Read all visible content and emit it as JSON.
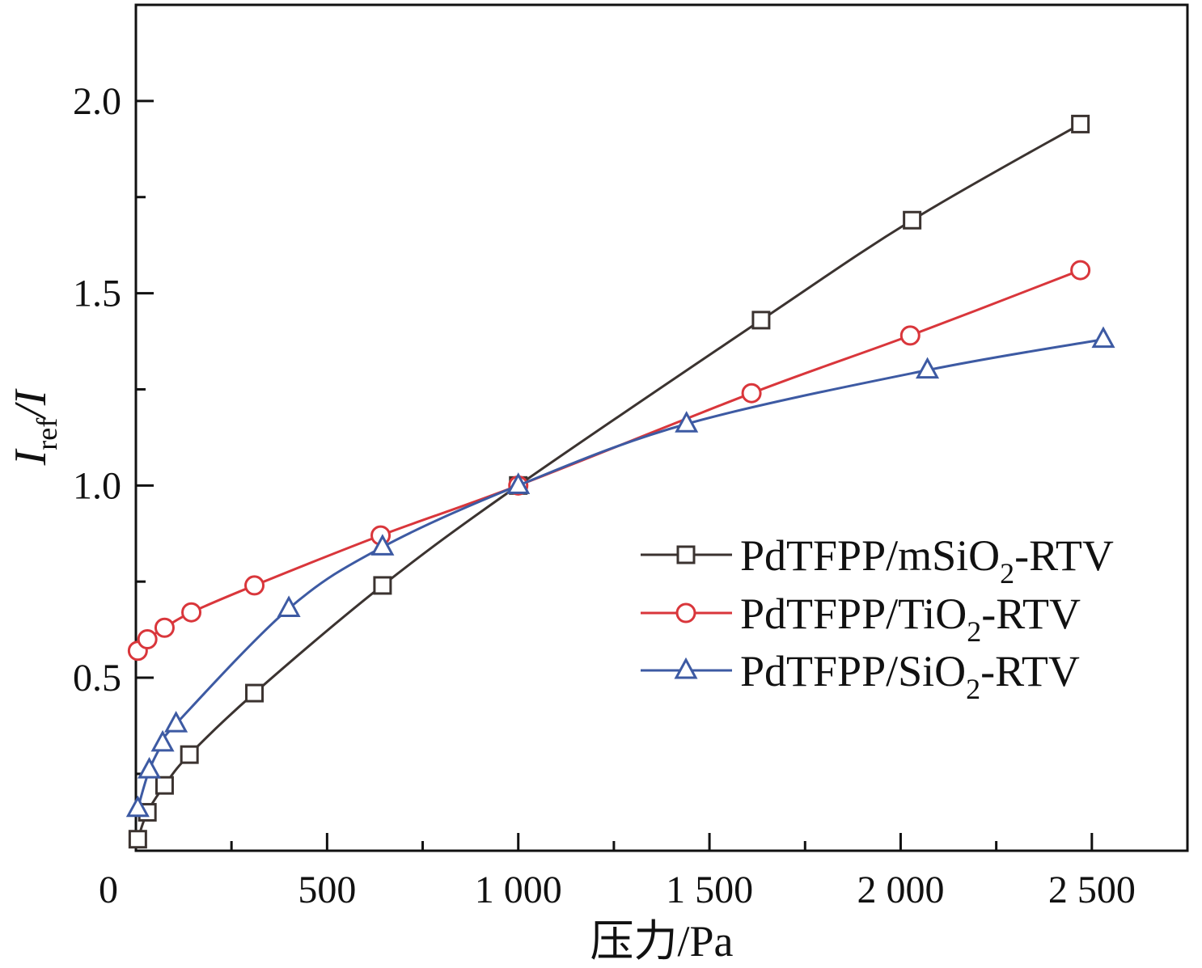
{
  "chart_data": {
    "type": "line",
    "title": "",
    "xlabel": "压力/Pa",
    "ylabel": {
      "main": "I",
      "sub": "ref",
      "rest": "/I"
    },
    "xlim": [
      0,
      2750
    ],
    "ylim": [
      0.05,
      2.25
    ],
    "x_ticks": [
      0,
      500,
      1000,
      1500,
      2000,
      2500
    ],
    "x_tick_labels": [
      "0",
      "500",
      "1 000",
      "1 500",
      "2 000",
      "2 500"
    ],
    "y_ticks": [
      0.5,
      1.0,
      1.5,
      2.0
    ],
    "y_tick_labels": [
      "0.5",
      "1.0",
      "1.5",
      "2.0"
    ],
    "legend_position": "center-right",
    "series": [
      {
        "name": "PdTFPP/mSiO2-RTV",
        "legend": {
          "pre": "PdTFPP/mSiO",
          "sub": "2",
          "post": "-RTV"
        },
        "color": "#3b3330",
        "marker": "square",
        "x": [
          5,
          30,
          75,
          140,
          310,
          645,
          1000,
          1635,
          2030,
          2470
        ],
        "y": [
          0.08,
          0.15,
          0.22,
          0.3,
          0.46,
          0.74,
          1.0,
          1.43,
          1.69,
          1.94
        ]
      },
      {
        "name": "PdTFPP/TiO2-RTV",
        "legend": {
          "pre": "PdTFPP/TiO",
          "sub": "2",
          "post": "-RTV"
        },
        "color": "#d9363b",
        "marker": "circle",
        "x": [
          5,
          30,
          75,
          145,
          310,
          640,
          1000,
          1610,
          2025,
          2470
        ],
        "y": [
          0.57,
          0.6,
          0.63,
          0.67,
          0.74,
          0.87,
          1.0,
          1.24,
          1.39,
          1.56
        ]
      },
      {
        "name": "PdTFPP/SiO2-RTV",
        "legend": {
          "pre": "PdTFPP/SiO",
          "sub": "2",
          "post": "-RTV"
        },
        "color": "#3d5aa3",
        "marker": "triangle",
        "x": [
          5,
          35,
          70,
          105,
          400,
          645,
          1000,
          1440,
          2070,
          2530
        ],
        "y": [
          0.16,
          0.26,
          0.33,
          0.38,
          0.68,
          0.84,
          1.0,
          1.16,
          1.3,
          1.38
        ]
      }
    ]
  }
}
